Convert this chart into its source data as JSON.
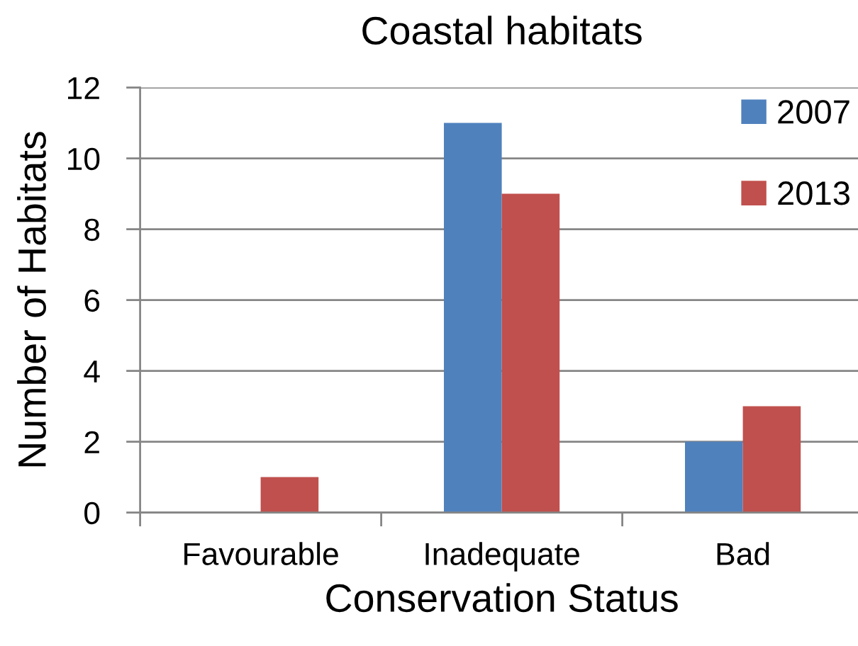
{
  "chart_data": {
    "type": "bar",
    "title": "Coastal habitats",
    "xlabel": "Conservation Status",
    "ylabel": "Number of Habitats",
    "categories": [
      "Favourable",
      "Inadequate",
      "Bad"
    ],
    "series": [
      {
        "name": "2007",
        "color": "#4f81bd",
        "values": [
          0,
          11,
          2
        ]
      },
      {
        "name": "2013",
        "color": "#c0504d",
        "values": [
          1,
          9,
          3
        ]
      }
    ],
    "ylim": [
      0,
      12
    ],
    "yticks": [
      0,
      2,
      4,
      6,
      8,
      10,
      12
    ],
    "grid": "y",
    "legend": "top right"
  }
}
